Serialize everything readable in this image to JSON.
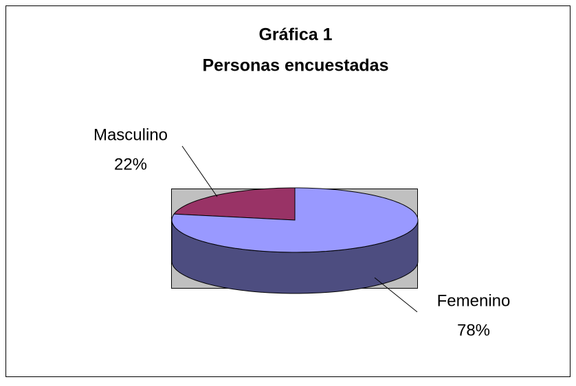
{
  "chart_data": {
    "type": "pie3d",
    "title": [
      "Gráfica 1",
      "Personas encuestadas"
    ],
    "categories": [
      "Masculino",
      "Femenino"
    ],
    "values": [
      22,
      78
    ],
    "value_labels": [
      "22%",
      "78%"
    ],
    "colors": [
      "#993366",
      "#9999FF"
    ]
  }
}
